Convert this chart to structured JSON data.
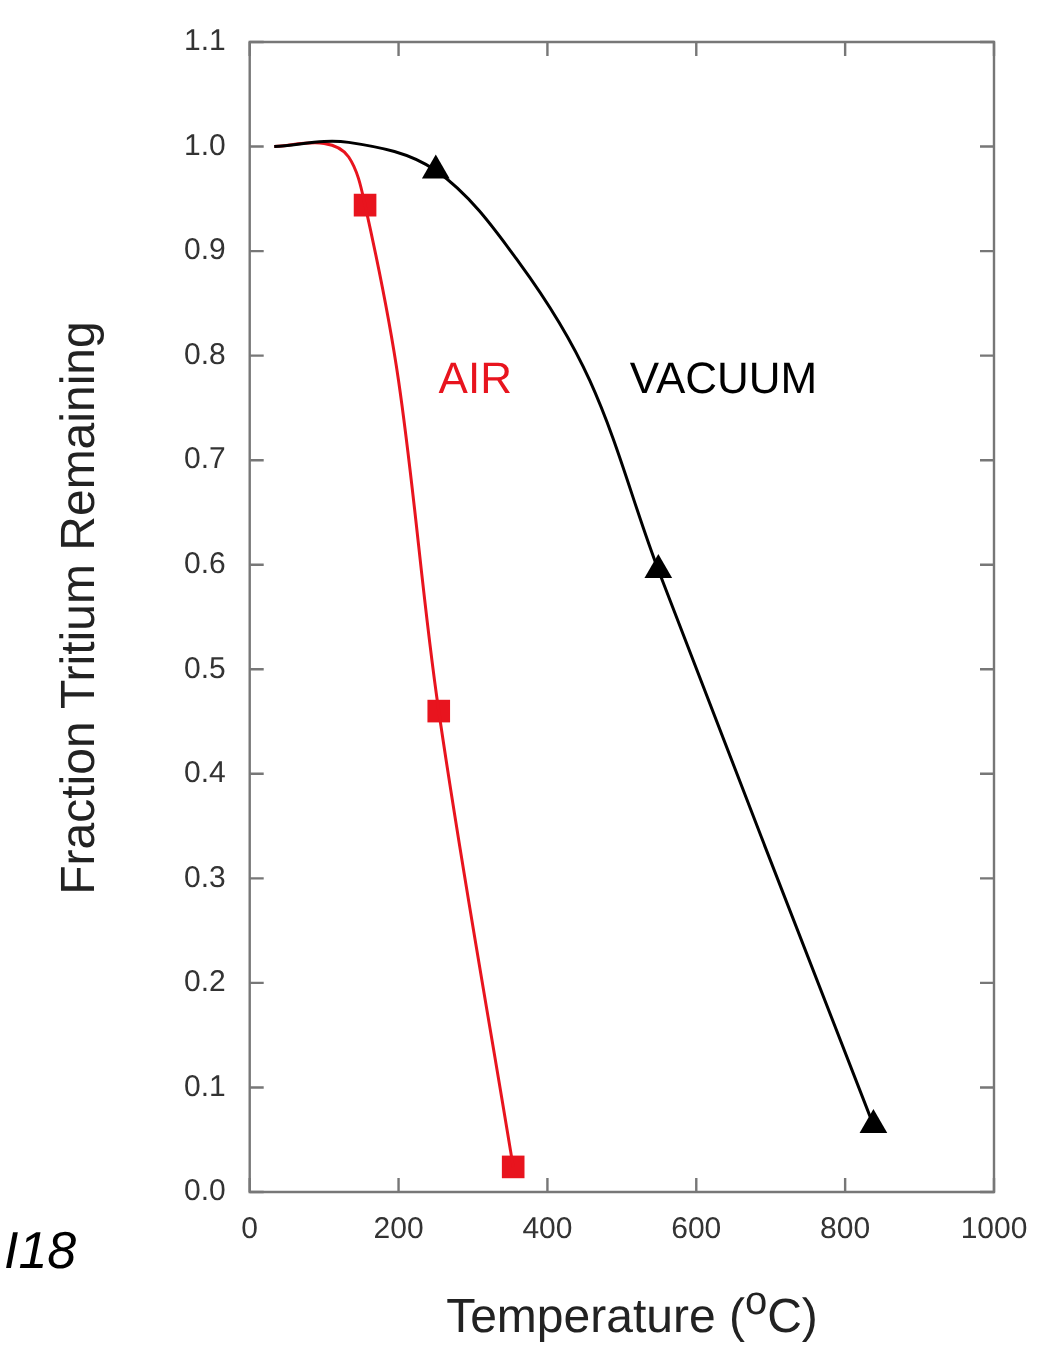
{
  "chart_data": {
    "type": "line",
    "xlabel": "Temperature  ($^{o}$C)",
    "ylabel": "Fraction Tritium Remaining",
    "xlim": [
      0,
      1000
    ],
    "xticks": [
      0,
      200,
      400,
      600,
      800,
      1000
    ],
    "ylim": [
      0,
      1.1
    ],
    "yticks": [
      {
        "value": 0,
        "label": "0.0"
      },
      0.1,
      0.2,
      0.3,
      0.4,
      0.5,
      0.6,
      0.7,
      0.8,
      0.9,
      {
        "value": 1,
        "label": "1.0"
      },
      1.1
    ],
    "grid": false,
    "legend": false,
    "marker": "none",
    "series": [
      {
        "name": "VACUUM",
        "color": "#000000",
        "x": [
          33,
          133,
          250,
          362,
          457,
          549,
          838
        ],
        "values": [
          1.0,
          1.004,
          0.977,
          0.889,
          0.776,
          0.595,
          0.064
        ]
      },
      {
        "name": "AIR",
        "color": "#e8141e",
        "x": [
          33,
          100,
          133,
          155,
          200,
          254,
          354
        ],
        "values": [
          1.0,
          1.003,
          0.99,
          0.944,
          0.776,
          0.46,
          0.024
        ]
      },
      {
        "type": "scatter",
        "marker": "triangle",
        "color": "#000000",
        "x": [
          250,
          549,
          838
        ],
        "values": [
          0.977,
          0.595,
          0.064
        ]
      },
      {
        "type": "scatter",
        "marker": "square",
        "color": "#e8141e",
        "x": [
          155,
          254,
          354
        ],
        "values": [
          0.944,
          0.46,
          0.024
        ]
      }
    ],
    "annotations": [
      "I18"
    ]
  }
}
